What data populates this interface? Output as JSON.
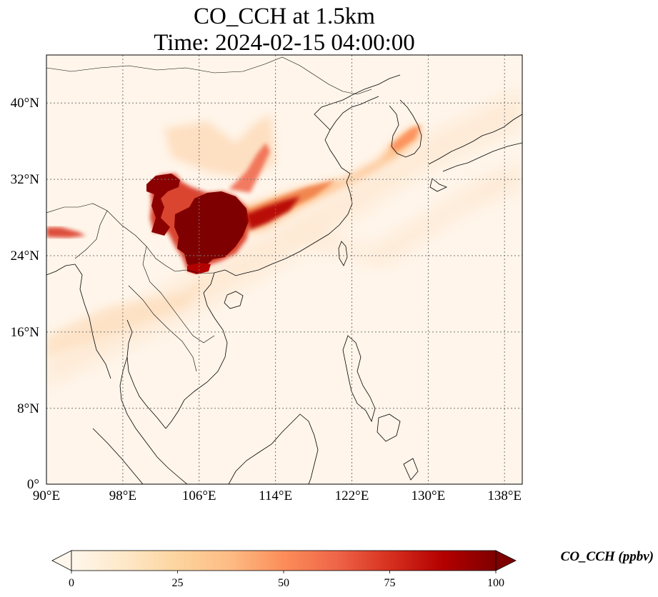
{
  "title": {
    "line1": "CO_CCH at 1.5km",
    "line2": "Time: 2024-02-15 04:00:00"
  },
  "map": {
    "lon_range": [
      90,
      139
    ],
    "lat_range": [
      0,
      45
    ],
    "lon_ticks": [
      "90°E",
      "98°E",
      "106°E",
      "114°E",
      "122°E",
      "130°E",
      "138°E"
    ],
    "lon_tick_values": [
      90,
      98,
      106,
      114,
      122,
      130,
      138
    ],
    "lat_ticks": [
      "0°",
      "8°N",
      "16°N",
      "24°N",
      "32°N",
      "40°N"
    ],
    "lat_tick_values": [
      0,
      8,
      16,
      24,
      32,
      40
    ],
    "grid": true,
    "colormap": "OrRd"
  },
  "colorbar": {
    "label": "CO_CCH (ppbv)",
    "ticks": [
      "0",
      "25",
      "50",
      "75",
      "100"
    ],
    "tick_values": [
      0,
      25,
      50,
      75,
      100
    ],
    "range": [
      0,
      100
    ],
    "extend": "both",
    "colors": [
      "#fff7ec",
      "#fee8c8",
      "#fdd49e",
      "#fdbb84",
      "#fc8d59",
      "#ef6548",
      "#d7301f",
      "#b30000",
      "#7f0000"
    ]
  }
}
